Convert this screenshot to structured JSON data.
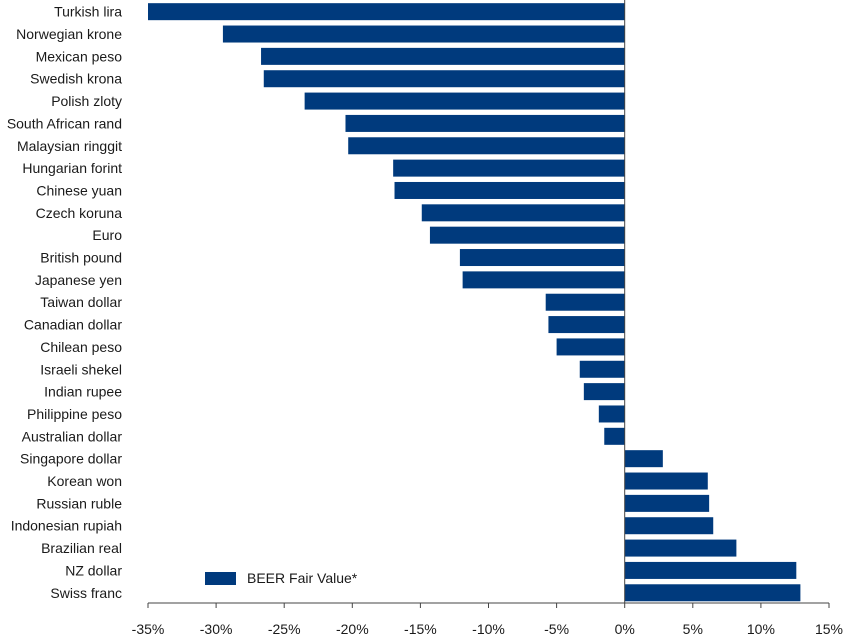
{
  "chart_data": {
    "type": "bar",
    "orientation": "horizontal",
    "categories": [
      "Turkish lira",
      "Norwegian krone",
      "Mexican peso",
      "Swedish krona",
      "Polish zloty",
      "South African rand",
      "Malaysian ringgit",
      "Hungarian forint",
      "Chinese yuan",
      "Czech koruna",
      "Euro",
      "British pound",
      "Japanese yen",
      "Taiwan dollar",
      "Canadian dollar",
      "Chilean peso",
      "Israeli shekel",
      "Indian rupee",
      "Philippine peso",
      "Australian dollar",
      "Singapore dollar",
      "Korean won",
      "Russian ruble",
      "Indonesian rupiah",
      "Brazilian real",
      "NZ dollar",
      "Swiss franc"
    ],
    "series": [
      {
        "name": "BEER Fair Value*",
        "color": "#003a7d",
        "values": [
          -35.0,
          -29.5,
          -26.7,
          -26.5,
          -23.5,
          -20.5,
          -20.3,
          -17.0,
          -16.9,
          -14.9,
          -14.3,
          -12.1,
          -11.9,
          -5.8,
          -5.6,
          -5.0,
          -3.3,
          -3.0,
          -1.9,
          -1.5,
          2.8,
          6.1,
          6.2,
          6.5,
          8.2,
          12.6,
          12.9
        ]
      }
    ],
    "xlim": [
      -35,
      15
    ],
    "xticks": [
      -35,
      -30,
      -25,
      -20,
      -15,
      -10,
      -5,
      0,
      5,
      10,
      15
    ],
    "xtick_labels": [
      "-35%",
      "-30%",
      "-25%",
      "-20%",
      "-15%",
      "-10%",
      "-5%",
      "0%",
      "5%",
      "10%",
      "15%"
    ],
    "legend": {
      "label": "BEER Fair Value*",
      "placement": "bottom-center"
    },
    "grid": false,
    "title": "",
    "xlabel": "",
    "ylabel": ""
  }
}
